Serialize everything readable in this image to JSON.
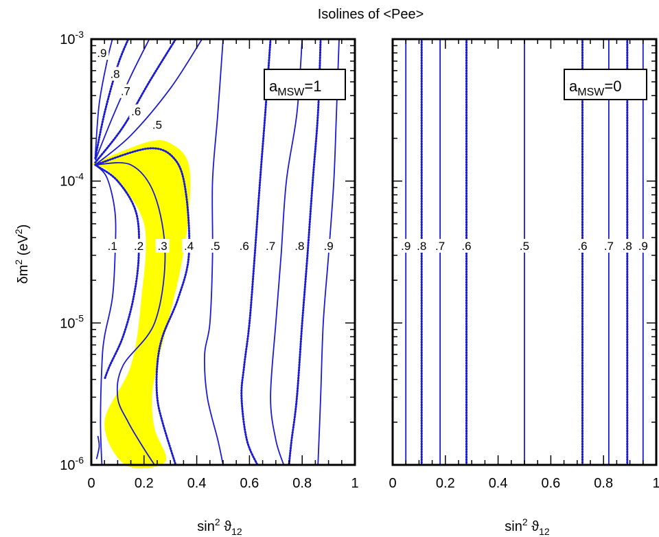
{
  "title": "Isolines of <Pee>",
  "ylabel": {
    "main": "δm",
    "sup2": "2",
    "unit": " (eV",
    "sup_unit": "2",
    "close": ")"
  },
  "xlabel": {
    "main": "sin",
    "sup": "2",
    "sym": " ϑ",
    "sub": "12"
  },
  "yticks": [
    {
      "base": "10",
      "exp": "-3"
    },
    {
      "base": "10",
      "exp": "-4"
    },
    {
      "base": "10",
      "exp": "-5"
    },
    {
      "base": "10",
      "exp": "-6"
    }
  ],
  "xticks": [
    "0",
    "0.2",
    "0.4",
    "0.6",
    "0.8",
    "1"
  ],
  "colors": {
    "contour": "#1a1ad6",
    "band": "#ffff00",
    "frame": "#000000"
  },
  "chart_data": [
    {
      "type": "contour",
      "panel": "left",
      "annotation": {
        "main": "a",
        "sub": "MSW",
        "rest": "=1"
      },
      "xlim": [
        0,
        1
      ],
      "ylim": [
        1e-06,
        0.001
      ],
      "yscale": "log",
      "band": {
        "description": "highlighted",
        "color": "#ffff00",
        "left": [
          [
            0.015,
            0.00013
          ],
          [
            0.08,
            0.00011
          ],
          [
            0.2,
            5e-05
          ],
          [
            0.19,
            1.5e-05
          ],
          [
            0.15,
            5e-06
          ],
          [
            0.05,
            2e-06
          ],
          [
            0.13,
            1e-06
          ]
        ],
        "right": [
          [
            0.28,
            1.05e-06
          ],
          [
            0.24,
            1.8e-06
          ],
          [
            0.23,
            3e-06
          ],
          [
            0.25,
            5e-06
          ],
          [
            0.29,
            1e-05
          ],
          [
            0.34,
            2.5e-05
          ],
          [
            0.37,
            6e-05
          ],
          [
            0.37,
            0.00013
          ],
          [
            0.31,
            0.00018
          ],
          [
            0.22,
            0.00019
          ],
          [
            0.015,
            0.000135
          ]
        ]
      },
      "series": [
        {
          "level": ".1",
          "style": "solid",
          "points": [
            [
              0.015,
              0.00013
            ],
            [
              0.06,
              0.000105
            ],
            [
              0.09,
              6e-05
            ],
            [
              0.09,
              3e-05
            ],
            [
              0.08,
              1.5e-05
            ],
            [
              0.05,
              8e-06
            ],
            [
              0.04,
              5e-06
            ],
            [
              0.035,
              2e-06
            ],
            [
              0.04,
              1e-06
            ]
          ]
        },
        {
          "level": ".2",
          "style": "dotted",
          "points": [
            [
              0.015,
              0.00013
            ],
            [
              0.1,
              0.0001
            ],
            [
              0.17,
              6e-05
            ],
            [
              0.18,
              3e-05
            ],
            [
              0.16,
              1.5e-05
            ],
            [
              0.12,
              8e-06
            ],
            [
              0.07,
              5e-06
            ],
            [
              0.05,
              4e-06
            ]
          ]
        },
        {
          "level": ".3",
          "style": "solid",
          "points": [
            [
              0.015,
              0.00013
            ],
            [
              0.15,
              0.00013
            ],
            [
              0.24,
              8e-05
            ],
            [
              0.28,
              3e-05
            ],
            [
              0.24,
              1e-05
            ],
            [
              0.12,
              5e-06
            ],
            [
              0.1,
              3e-06
            ],
            [
              0.14,
              2e-06
            ],
            [
              0.2,
              1.3e-06
            ],
            [
              0.24,
              1e-06
            ]
          ]
        },
        {
          "level": ".4",
          "style": "dotted",
          "points": [
            [
              0.015,
              0.00013
            ],
            [
              0.22,
              0.00017
            ],
            [
              0.32,
              0.00014
            ],
            [
              0.36,
              8e-05
            ],
            [
              0.37,
              3e-05
            ],
            [
              0.33,
              1.5e-05
            ],
            [
              0.27,
              8e-06
            ],
            [
              0.25,
              5e-06
            ],
            [
              0.25,
              3e-06
            ],
            [
              0.27,
              2e-06
            ],
            [
              0.32,
              1e-06
            ]
          ]
        },
        {
          "level": ".5",
          "style": "solid",
          "points": [
            [
              0.5,
              0.001
            ],
            [
              0.48,
              0.0003
            ],
            [
              0.46,
              0.0001
            ],
            [
              0.46,
              3e-05
            ],
            [
              0.45,
              1e-05
            ],
            [
              0.43,
              6e-06
            ],
            [
              0.44,
              3e-06
            ],
            [
              0.48,
              1.5e-06
            ],
            [
              0.5,
              1e-06
            ]
          ]
        },
        {
          "level": ".6",
          "style": "dotted",
          "points": [
            [
              0.68,
              0.001
            ],
            [
              0.66,
              0.0003
            ],
            [
              0.64,
              0.0001
            ],
            [
              0.62,
              3e-05
            ],
            [
              0.6,
              1e-05
            ],
            [
              0.58,
              5e-06
            ],
            [
              0.57,
              3e-06
            ],
            [
              0.59,
              1.5e-06
            ],
            [
              0.63,
              1e-06
            ]
          ]
        },
        {
          "level": ".7",
          "style": "solid",
          "points": [
            [
              0.8,
              0.001
            ],
            [
              0.78,
              0.0003
            ],
            [
              0.74,
              0.0001
            ],
            [
              0.72,
              3e-05
            ],
            [
              0.7,
              1e-05
            ],
            [
              0.68,
              3e-06
            ],
            [
              0.7,
              1.5e-06
            ],
            [
              0.73,
              1e-06
            ]
          ]
        },
        {
          "level": ".8",
          "style": "dotted",
          "points": [
            [
              0.87,
              0.001
            ],
            [
              0.86,
              0.0003
            ],
            [
              0.84,
              0.0001
            ],
            [
              0.82,
              3e-05
            ],
            [
              0.8,
              1e-05
            ],
            [
              0.78,
              3e-06
            ],
            [
              0.76,
              1.5e-06
            ],
            [
              0.75,
              1e-06
            ]
          ]
        },
        {
          "level": ".9",
          "style": "solid",
          "points": [
            [
              0.94,
              0.001
            ],
            [
              0.93,
              0.0003
            ],
            [
              0.92,
              0.0001
            ],
            [
              0.9,
              3e-05
            ],
            [
              0.88,
              1e-05
            ],
            [
              0.87,
              3e-06
            ],
            [
              0.86,
              1e-06
            ]
          ]
        },
        {
          "level": ".5",
          "style": "solid",
          "points": [
            [
              0.015,
              0.00013
            ],
            [
              0.15,
              0.00021
            ],
            [
              0.3,
              0.00045
            ],
            [
              0.42,
              0.001
            ]
          ]
        },
        {
          "level": ".6",
          "style": "dotted",
          "points": [
            [
              0.015,
              0.000135
            ],
            [
              0.12,
              0.00024
            ],
            [
              0.22,
              0.0005
            ],
            [
              0.32,
              0.001
            ]
          ]
        },
        {
          "level": ".7",
          "style": "solid",
          "points": [
            [
              0.015,
              0.00014
            ],
            [
              0.08,
              0.00028
            ],
            [
              0.15,
              0.00055
            ],
            [
              0.22,
              0.001
            ]
          ]
        },
        {
          "level": ".8",
          "style": "dotted",
          "points": [
            [
              0.015,
              0.000145
            ],
            [
              0.05,
              0.0003
            ],
            [
              0.1,
              0.00065
            ],
            [
              0.14,
              0.001
            ]
          ]
        },
        {
          "level": ".9",
          "style": "solid",
          "points": [
            [
              0.015,
              0.00015
            ],
            [
              0.03,
              0.00035
            ],
            [
              0.06,
              0.0007
            ],
            [
              0.08,
              0.001
            ]
          ]
        },
        {
          "level": ".2",
          "style": "solid",
          "points": [
            [
              0.02,
              1.1e-06
            ],
            [
              0.03,
              1.35e-06
            ],
            [
              0.025,
              1.6e-06
            ]
          ]
        }
      ],
      "labels": [
        {
          "text": ".1",
          "x": 0.08,
          "y": 3.5e-05
        },
        {
          "text": ".2",
          "x": 0.18,
          "y": 3.5e-05
        },
        {
          "text": ".3",
          "x": 0.27,
          "y": 3.5e-05
        },
        {
          "text": ".4",
          "x": 0.37,
          "y": 3.5e-05
        },
        {
          "text": ".5",
          "x": 0.47,
          "y": 3.5e-05
        },
        {
          "text": ".6",
          "x": 0.58,
          "y": 3.5e-05
        },
        {
          "text": ".7",
          "x": 0.68,
          "y": 3.5e-05
        },
        {
          "text": ".8",
          "x": 0.79,
          "y": 3.5e-05
        },
        {
          "text": ".9",
          "x": 0.9,
          "y": 3.5e-05
        },
        {
          "text": ".9",
          "x": 0.04,
          "y": 0.0008
        },
        {
          "text": ".8",
          "x": 0.09,
          "y": 0.00057
        },
        {
          "text": ".7",
          "x": 0.13,
          "y": 0.00043
        },
        {
          "text": ".6",
          "x": 0.17,
          "y": 0.00031
        },
        {
          "text": ".5",
          "x": 0.25,
          "y": 0.00025
        }
      ]
    },
    {
      "type": "contour",
      "panel": "right",
      "annotation": {
        "main": "a",
        "sub": "MSW",
        "rest": "=0"
      },
      "xlim": [
        0,
        1
      ],
      "ylim": [
        1e-06,
        0.001
      ],
      "yscale": "log",
      "series": [
        {
          "level": ".9",
          "style": "solid",
          "x": 0.05
        },
        {
          "level": ".8",
          "style": "dotted",
          "x": 0.11
        },
        {
          "level": ".7",
          "style": "solid",
          "x": 0.18
        },
        {
          "level": ".6",
          "style": "dotted",
          "x": 0.28
        },
        {
          "level": ".5",
          "style": "solid",
          "x": 0.5
        },
        {
          "level": ".6",
          "style": "dotted",
          "x": 0.72
        },
        {
          "level": ".7",
          "style": "solid",
          "x": 0.82
        },
        {
          "level": ".8",
          "style": "dotted",
          "x": 0.89
        },
        {
          "level": ".9",
          "style": "solid",
          "x": 0.95
        }
      ],
      "labels": [
        {
          "text": ".9",
          "x": 0.05,
          "y": 3.5e-05
        },
        {
          "text": ".8",
          "x": 0.11,
          "y": 3.5e-05
        },
        {
          "text": ".7",
          "x": 0.18,
          "y": 3.5e-05
        },
        {
          "text": ".6",
          "x": 0.28,
          "y": 3.5e-05
        },
        {
          "text": ".5",
          "x": 0.5,
          "y": 3.5e-05
        },
        {
          "text": ".6",
          "x": 0.72,
          "y": 3.5e-05
        },
        {
          "text": ".7",
          "x": 0.82,
          "y": 3.5e-05
        },
        {
          "text": ".8",
          "x": 0.89,
          "y": 3.5e-05
        },
        {
          "text": ".9",
          "x": 0.95,
          "y": 3.5e-05
        }
      ]
    }
  ]
}
